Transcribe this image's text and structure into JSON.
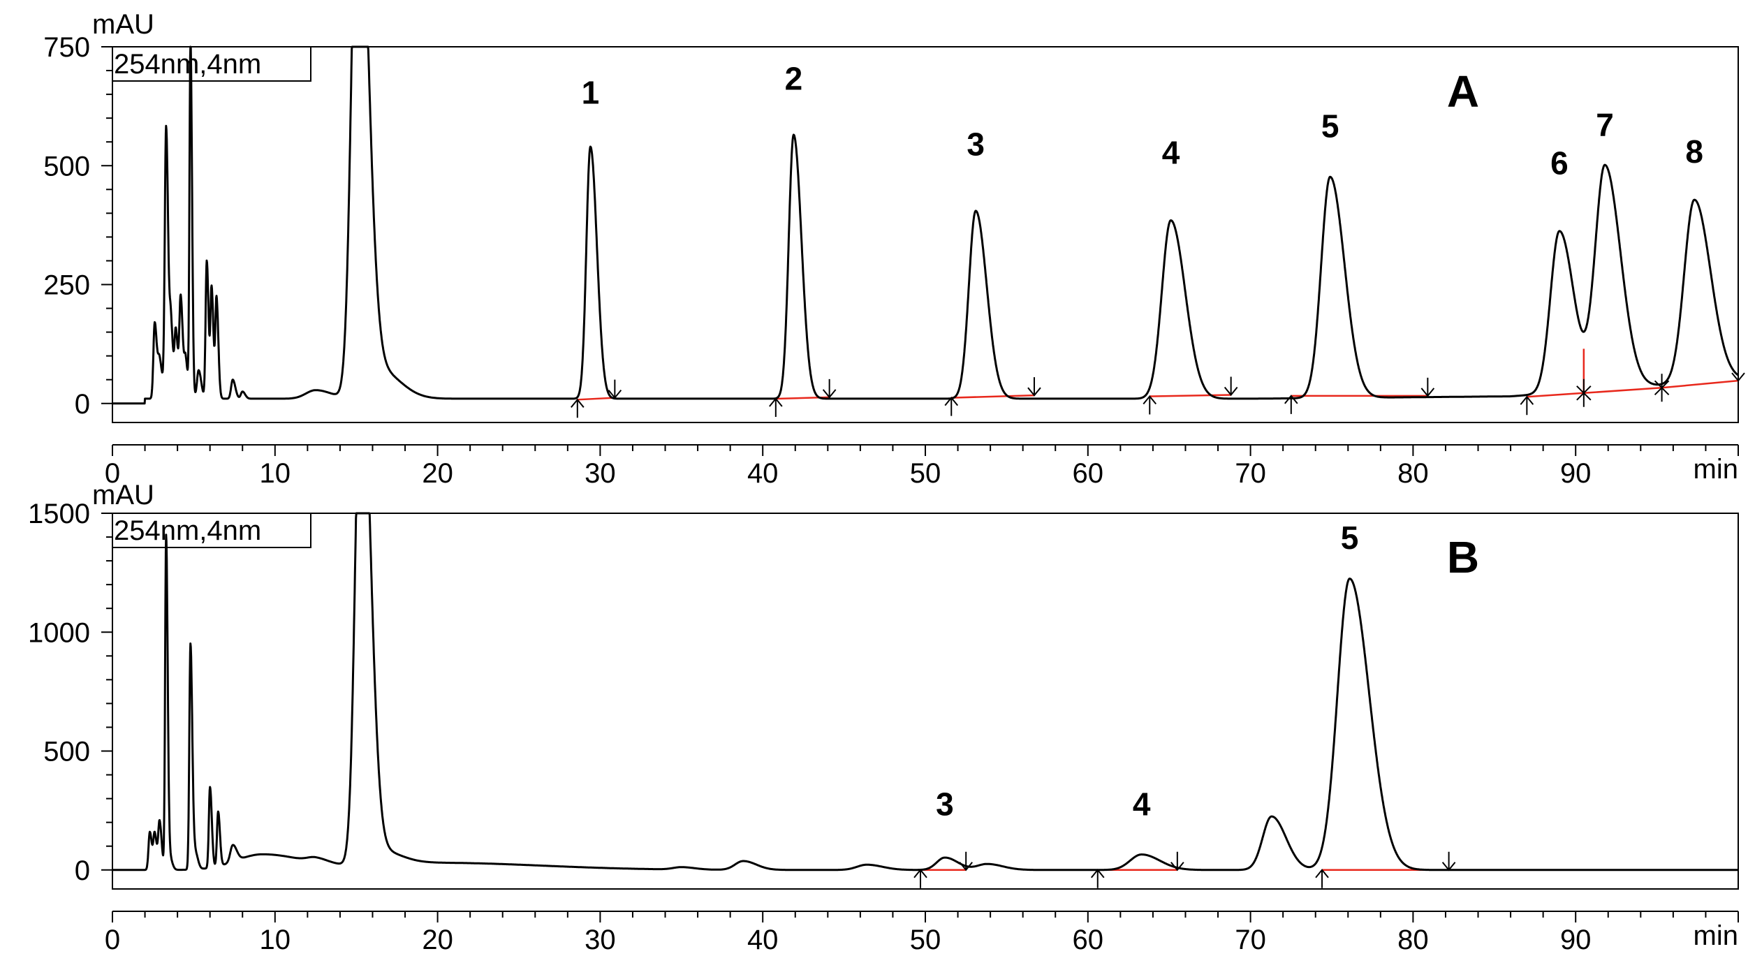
{
  "chart_data": [
    {
      "type": "line",
      "panel": "A",
      "panel_label": "A",
      "ylabel": "mAU",
      "xunit": "min",
      "detector_label": "254nm,4nm",
      "xlim": [
        0,
        100
      ],
      "ylim": [
        -40,
        750
      ],
      "yticks": [
        0,
        250,
        500,
        750
      ],
      "xticks": [
        0,
        10,
        20,
        30,
        40,
        50,
        60,
        70,
        80,
        90
      ],
      "grid": false,
      "baseline": 10,
      "drift": [
        {
          "x": 70,
          "y": 0
        },
        {
          "x": 86,
          "y": 5
        },
        {
          "x": 100,
          "y": 40
        }
      ],
      "peaks": [
        {
          "t": 2.6,
          "h": 160,
          "w": 0.08
        },
        {
          "t": 2.9,
          "h": 80,
          "w": 0.1
        },
        {
          "t": 3.3,
          "h": 570,
          "w": 0.08
        },
        {
          "t": 3.6,
          "h": 150,
          "w": 0.08
        },
        {
          "t": 3.9,
          "h": 140,
          "w": 0.08
        },
        {
          "t": 4.2,
          "h": 210,
          "w": 0.08
        },
        {
          "t": 4.5,
          "h": 80,
          "w": 0.08
        },
        {
          "t": 4.8,
          "h": 750,
          "w": 0.06
        },
        {
          "t": 5.3,
          "h": 60,
          "w": 0.1
        },
        {
          "t": 5.8,
          "h": 290,
          "w": 0.07
        },
        {
          "t": 6.1,
          "h": 230,
          "w": 0.07
        },
        {
          "t": 6.4,
          "h": 210,
          "w": 0.07
        },
        {
          "t": 7.4,
          "h": 40,
          "w": 0.1
        },
        {
          "t": 8.0,
          "h": 15,
          "w": 0.1
        },
        {
          "t": 12.5,
          "h": 18,
          "w": 0.6
        },
        {
          "t": 15.1,
          "h": 1200,
          "w": 0.38
        },
        {
          "t": 16.4,
          "h": 60,
          "w": 0.8
        },
        {
          "t": 29.4,
          "h": 530,
          "w": 0.25
        },
        {
          "t": 41.9,
          "h": 555,
          "w": 0.3
        },
        {
          "t": 53.1,
          "h": 395,
          "w": 0.42
        },
        {
          "t": 65.1,
          "h": 375,
          "w": 0.55
        },
        {
          "t": 74.9,
          "h": 465,
          "w": 0.55
        },
        {
          "t": 89.0,
          "h": 340,
          "w": 0.55
        },
        {
          "t": 91.8,
          "h": 470,
          "w": 0.6
        },
        {
          "t": 97.3,
          "h": 385,
          "w": 0.62
        }
      ],
      "peak_labels": [
        {
          "text": "1",
          "x": 29.4,
          "y": 630
        },
        {
          "text": "2",
          "x": 41.9,
          "y": 660
        },
        {
          "text": "3",
          "x": 53.1,
          "y": 522
        },
        {
          "text": "4",
          "x": 65.1,
          "y": 504
        },
        {
          "text": "5",
          "x": 74.9,
          "y": 560
        },
        {
          "text": "6",
          "x": 89.0,
          "y": 482
        },
        {
          "text": "7",
          "x": 91.8,
          "y": 563
        },
        {
          "text": "8",
          "x": 97.3,
          "y": 506
        }
      ],
      "integration_lines": [
        {
          "x1": 28.6,
          "y1": 8,
          "x2": 30.9,
          "y2": 12
        },
        {
          "x1": 40.8,
          "y1": 10,
          "x2": 44.1,
          "y2": 13
        },
        {
          "x1": 51.6,
          "y1": 12,
          "x2": 56.7,
          "y2": 17
        },
        {
          "x1": 63.8,
          "y1": 15,
          "x2": 68.8,
          "y2": 18
        },
        {
          "x1": 72.5,
          "y1": 16,
          "x2": 80.9,
          "y2": 16
        },
        {
          "x1": 87.0,
          "y1": 14,
          "x2": 90.5,
          "y2": 22
        },
        {
          "x1": 90.5,
          "y1": 22,
          "x2": 95.3,
          "y2": 33
        },
        {
          "x1": 95.3,
          "y1": 33,
          "x2": 100.0,
          "y2": 48
        },
        {
          "x1": 90.5,
          "y1": 22,
          "x2": 90.5,
          "y2": 115
        }
      ],
      "markers": [
        {
          "x": 28.6,
          "y": 8,
          "kind": "start"
        },
        {
          "x": 30.9,
          "y": 12,
          "kind": "end"
        },
        {
          "x": 40.8,
          "y": 10,
          "kind": "start"
        },
        {
          "x": 44.1,
          "y": 13,
          "kind": "end"
        },
        {
          "x": 51.6,
          "y": 12,
          "kind": "start"
        },
        {
          "x": 56.7,
          "y": 17,
          "kind": "end"
        },
        {
          "x": 63.8,
          "y": 15,
          "kind": "start"
        },
        {
          "x": 68.8,
          "y": 18,
          "kind": "end"
        },
        {
          "x": 72.5,
          "y": 16,
          "kind": "start"
        },
        {
          "x": 80.9,
          "y": 16,
          "kind": "end"
        },
        {
          "x": 87.0,
          "y": 14,
          "kind": "start"
        },
        {
          "x": 90.5,
          "y": 22,
          "kind": "split"
        },
        {
          "x": 95.3,
          "y": 33,
          "kind": "split"
        },
        {
          "x": 100.0,
          "y": 48,
          "kind": "end"
        }
      ]
    },
    {
      "type": "line",
      "panel": "B",
      "panel_label": "B",
      "ylabel": "mAU",
      "xunit": "min",
      "detector_label": "254nm,4nm",
      "xlim": [
        0,
        100
      ],
      "ylim": [
        -80,
        1500
      ],
      "yticks": [
        0,
        500,
        1000,
        1500
      ],
      "xticks": [
        0,
        10,
        20,
        30,
        40,
        50,
        60,
        70,
        80,
        90
      ],
      "grid": false,
      "baseline": 0,
      "drift": [],
      "peaks": [
        {
          "t": 2.3,
          "h": 160,
          "w": 0.08
        },
        {
          "t": 2.6,
          "h": 150,
          "w": 0.08
        },
        {
          "t": 2.9,
          "h": 200,
          "w": 0.08
        },
        {
          "t": 3.3,
          "h": 1400,
          "w": 0.06
        },
        {
          "t": 3.5,
          "h": 60,
          "w": 0.1
        },
        {
          "t": 4.8,
          "h": 950,
          "w": 0.07
        },
        {
          "t": 5.1,
          "h": 70,
          "w": 0.1
        },
        {
          "t": 6.0,
          "h": 340,
          "w": 0.07
        },
        {
          "t": 6.5,
          "h": 230,
          "w": 0.07
        },
        {
          "t": 7.4,
          "h": 70,
          "w": 0.15
        },
        {
          "t": 9.2,
          "h": 65,
          "w": 1.6
        },
        {
          "t": 12.5,
          "h": 20,
          "w": 0.5
        },
        {
          "t": 15.3,
          "h": 2200,
          "w": 0.35
        },
        {
          "t": 16.4,
          "h": 60,
          "w": 0.8
        },
        {
          "t": 20.0,
          "h": 30,
          "w": 4.0
        },
        {
          "t": 35.0,
          "h": 10,
          "w": 0.5
        },
        {
          "t": 38.8,
          "h": 37,
          "w": 0.5
        },
        {
          "t": 46.4,
          "h": 22,
          "w": 0.6
        },
        {
          "t": 51.2,
          "h": 52,
          "w": 0.5
        },
        {
          "t": 53.8,
          "h": 25,
          "w": 0.6
        },
        {
          "t": 63.3,
          "h": 65,
          "w": 0.7
        },
        {
          "t": 71.3,
          "h": 225,
          "w": 0.55
        },
        {
          "t": 76.1,
          "h": 1225,
          "w": 0.75
        }
      ],
      "peak_labels": [
        {
          "text": "3",
          "x": 51.2,
          "y": 230
        },
        {
          "text": "4",
          "x": 63.3,
          "y": 230
        },
        {
          "text": "5",
          "x": 76.1,
          "y": 1350
        }
      ],
      "integration_lines": [
        {
          "x1": 49.7,
          "y1": 0,
          "x2": 52.5,
          "y2": 0
        },
        {
          "x1": 60.6,
          "y1": 0,
          "x2": 65.5,
          "y2": 0
        },
        {
          "x1": 74.4,
          "y1": 0,
          "x2": 82.2,
          "y2": 0
        }
      ],
      "markers": [
        {
          "x": 49.7,
          "y": 0,
          "kind": "start"
        },
        {
          "x": 52.5,
          "y": 0,
          "kind": "end"
        },
        {
          "x": 60.6,
          "y": 0,
          "kind": "start"
        },
        {
          "x": 65.5,
          "y": 0,
          "kind": "end"
        },
        {
          "x": 74.4,
          "y": 0,
          "kind": "start"
        },
        {
          "x": 82.2,
          "y": 0,
          "kind": "end"
        }
      ]
    }
  ]
}
